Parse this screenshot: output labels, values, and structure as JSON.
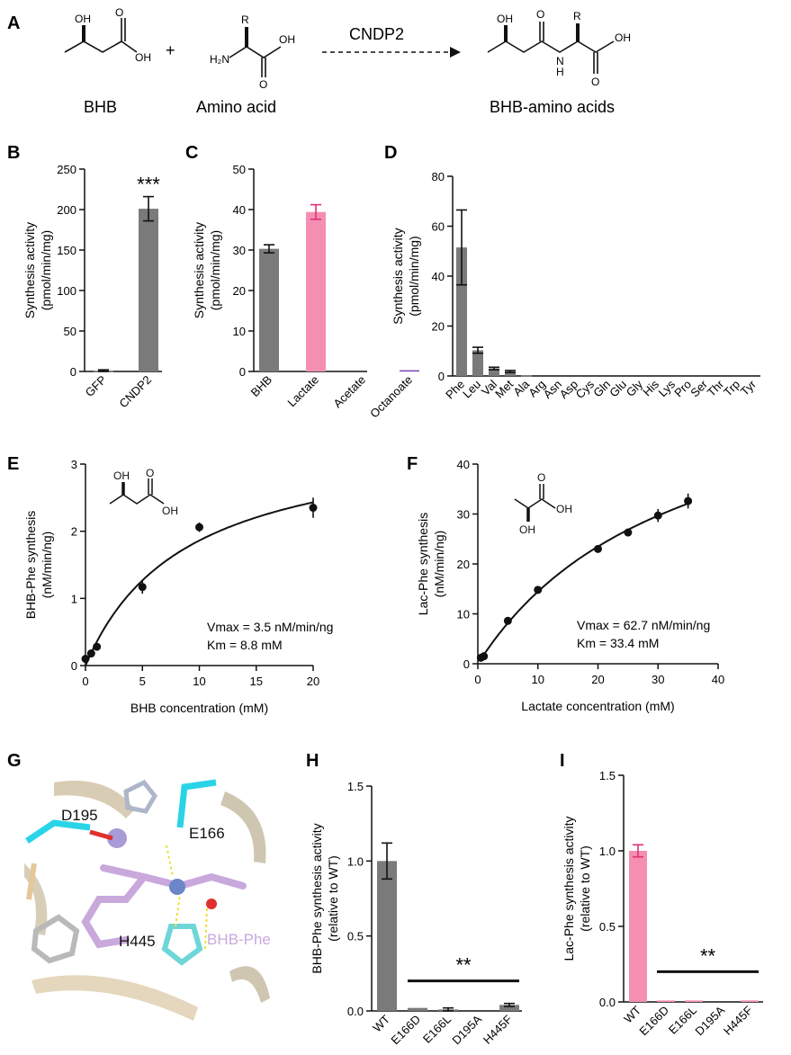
{
  "colors": {
    "gray": "#7a7a7a",
    "pink": "#f48fb1",
    "purple": "#7b3fb8",
    "black": "#000000",
    "err_pink": "#e0307a"
  },
  "panelA": {
    "label": "A",
    "enzyme": "CNDP2",
    "plus": "+",
    "reactant1_name": "BHB",
    "reactant2_name": "Amino acid",
    "product_name": "BHB-amino acids",
    "atoms": {
      "oh": "OH",
      "r": "R",
      "h2n": "H₂N",
      "o": "O",
      "n": "N",
      "h": "H"
    }
  },
  "chart_data": [
    {
      "id": "B",
      "type": "bar",
      "label": "B",
      "ylabel_l1": "Synthesis activity",
      "ylabel_l2": "(pmol/min/mg)",
      "categories": [
        "GFP",
        "CNDP2"
      ],
      "values": [
        1,
        201
      ],
      "errors": [
        1,
        15
      ],
      "ylim": [
        0,
        250
      ],
      "yticks": [
        "0",
        "50",
        "100",
        "150",
        "200",
        "250"
      ],
      "sig": "***",
      "colors": [
        "#7a7a7a",
        "#7a7a7a"
      ]
    },
    {
      "id": "C",
      "type": "bar",
      "label": "C",
      "ylabel_l1": "Synthesis activity",
      "ylabel_l2": "(pmol/min/mg)",
      "categories": [
        "BHB",
        "Lactate",
        "Acetate",
        "Octanoate"
      ],
      "values": [
        30.3,
        39.4,
        0,
        0.3
      ],
      "errors": [
        1,
        1.8,
        0,
        0
      ],
      "ylim": [
        0,
        50
      ],
      "yticks": [
        "0",
        "10",
        "20",
        "30",
        "40",
        "50"
      ],
      "colors": [
        "#7a7a7a",
        "#f48fb1",
        "#7a7a7a",
        "#7b3fb8"
      ]
    },
    {
      "id": "D",
      "type": "bar",
      "label": "D",
      "ylabel_l1": "Synthesis activity",
      "ylabel_l2": "(pmol/min/mg)",
      "categories": [
        "Phe",
        "Leu",
        "Val",
        "Met",
        "Ala",
        "Arg",
        "Asn",
        "Asp",
        "Cys",
        "Gln",
        "Glu",
        "Gly",
        "His",
        "Lys",
        "Pro",
        "Ser",
        "Thr",
        "Trp",
        "Tyr"
      ],
      "values": [
        51.5,
        10.3,
        3,
        1.8,
        0.2,
        0,
        0,
        0,
        0,
        0,
        0,
        0,
        0,
        0,
        0,
        0,
        0,
        0,
        0
      ],
      "errors": [
        15,
        1.2,
        0.5,
        0.4,
        0,
        0,
        0,
        0,
        0,
        0,
        0,
        0,
        0,
        0,
        0,
        0,
        0,
        0,
        0
      ],
      "ylim": [
        0,
        80
      ],
      "yticks": [
        "0",
        "20",
        "40",
        "60",
        "80"
      ]
    },
    {
      "id": "E",
      "type": "scatter",
      "label": "E",
      "ylabel_l1": "BHB-Phe synthesis",
      "ylabel_l2": "(nM/min/ng)",
      "xlabel": "BHB concentration (mM)",
      "x": [
        0,
        0.5,
        1,
        5,
        10,
        20
      ],
      "y": [
        0.1,
        0.18,
        0.28,
        1.17,
        2.06,
        2.35
      ],
      "errors": [
        0.02,
        0.03,
        0.03,
        0.1,
        0.07,
        0.15
      ],
      "xlim": [
        0,
        20
      ],
      "ylim": [
        0,
        3
      ],
      "xticks": [
        "0",
        "5",
        "10",
        "15",
        "20"
      ],
      "yticks": [
        "0",
        "1",
        "2",
        "3"
      ],
      "fit": {
        "vmax": 3.5,
        "km": 8.8
      },
      "annot1": "Vmax = 3.5 nM/min/ng",
      "annot2": "Km = 8.8 mM",
      "struct": {
        "oh": "OH",
        "o": "O",
        "oh2": "OH"
      }
    },
    {
      "id": "F",
      "type": "scatter",
      "label": "F",
      "ylabel_l1": "Lac-Phe synthesis",
      "ylabel_l2": "(nM/min/ng)",
      "xlabel": "Lactate concentration (mM)",
      "x": [
        0.5,
        1,
        5,
        10,
        20,
        25,
        30,
        35
      ],
      "y": [
        1.2,
        1.5,
        8.6,
        14.8,
        23,
        26.3,
        29.7,
        32.6
      ],
      "errors": [
        0.2,
        0.2,
        0.4,
        0.4,
        0.5,
        0.5,
        1.3,
        1.5
      ],
      "xlim": [
        0,
        40
      ],
      "ylim": [
        0,
        40
      ],
      "xticks": [
        "0",
        "10",
        "20",
        "30",
        "40"
      ],
      "yticks": [
        "0",
        "10",
        "20",
        "30",
        "40"
      ],
      "fit": {
        "vmax": 62.7,
        "km": 33.4
      },
      "annot1": "Vmax = 62.7 nM/min/ng",
      "annot2": "Km = 33.4 mM",
      "struct": {
        "o": "O",
        "oh": "OH",
        "oh2": "OH"
      }
    },
    {
      "id": "H",
      "type": "bar",
      "label": "H",
      "ylabel_l1": "BHB-Phe synthesis activity",
      "ylabel_l2": "(relative to WT)",
      "categories": [
        "WT",
        "E166D",
        "E166L",
        "D195A",
        "H445F"
      ],
      "values": [
        1.0,
        0.02,
        0.01,
        0,
        0.04
      ],
      "errors": [
        0.12,
        0,
        0.01,
        0,
        0.01
      ],
      "ylim": [
        0,
        1.5
      ],
      "yticks": [
        "0.0",
        "0.5",
        "1.0",
        "1.5"
      ],
      "sig": "**",
      "colors": [
        "#7a7a7a",
        "#7a7a7a",
        "#7a7a7a",
        "#7a7a7a",
        "#7a7a7a"
      ]
    },
    {
      "id": "I",
      "type": "bar",
      "label": "I",
      "ylabel_l1": "Lac-Phe synthesis activity",
      "ylabel_l2": "(relative to WT)",
      "categories": [
        "WT",
        "E166D",
        "E166L",
        "D195A",
        "H445F"
      ],
      "values": [
        1.0,
        0.01,
        0.01,
        0,
        0.01
      ],
      "errors": [
        0.04,
        0,
        0,
        0,
        0
      ],
      "ylim": [
        0,
        1.5
      ],
      "yticks": [
        "0.0",
        "0.5",
        "1.0",
        "1.5"
      ],
      "sig": "**",
      "colors": [
        "#f48fb1",
        "#f48fb1",
        "#f48fb1",
        "#f48fb1",
        "#f48fb1"
      ]
    }
  ],
  "panelG": {
    "label": "G",
    "res1": "D195",
    "res2": "E166",
    "res3": "H445",
    "ligand": "BHB-Phe"
  }
}
